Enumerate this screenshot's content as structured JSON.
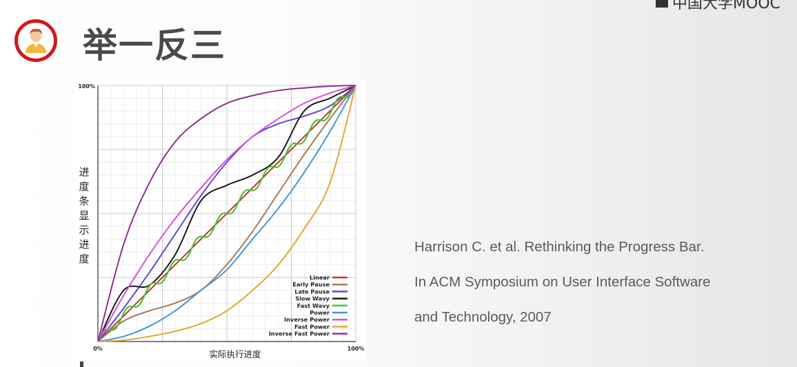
{
  "header": {
    "logo_text": "中国大学MOOC",
    "title": "举一反三"
  },
  "avatar": {
    "icon": "person-avatar-icon",
    "ring_color": "#d3171b"
  },
  "citation": {
    "line1": "Harrison C. et al. Rethinking the Progress Bar.",
    "line2": "In ACM Symposium on User Interface Software",
    "line3": "and Technology, 2007"
  },
  "chart_data": {
    "type": "line",
    "xlabel": "实际执行进度",
    "ylabel": "进度条显示进度",
    "x_ticks": [
      "0%",
      "100%"
    ],
    "y_ticks": [
      "0%",
      "100%"
    ],
    "xlim": [
      0,
      1
    ],
    "ylim": [
      0,
      1
    ],
    "grid": true,
    "legend_position": "bottom-right",
    "series": [
      {
        "name": "Linear",
        "color": "#c0392b",
        "x": [
          0,
          0.25,
          0.5,
          0.75,
          1
        ],
        "y": [
          0,
          0.25,
          0.5,
          0.75,
          1
        ]
      },
      {
        "name": "Early Pause",
        "color": "#a07b55",
        "x": [
          0,
          0.1,
          0.2,
          0.3,
          0.4,
          0.5,
          0.6,
          0.7,
          0.8,
          0.9,
          1
        ],
        "y": [
          0,
          0.08,
          0.12,
          0.15,
          0.2,
          0.3,
          0.43,
          0.58,
          0.73,
          0.87,
          1
        ]
      },
      {
        "name": "Late Pause",
        "color": "#5b49d6",
        "x": [
          0,
          0.1,
          0.2,
          0.3,
          0.4,
          0.5,
          0.6,
          0.7,
          0.8,
          0.9,
          1
        ],
        "y": [
          0,
          0.13,
          0.27,
          0.42,
          0.57,
          0.7,
          0.8,
          0.85,
          0.88,
          0.92,
          1
        ]
      },
      {
        "name": "Slow Wavy",
        "color": "#1a1a1a",
        "x": [
          0,
          0.1,
          0.2,
          0.3,
          0.4,
          0.5,
          0.6,
          0.7,
          0.8,
          0.9,
          1
        ],
        "y": [
          0,
          0.2,
          0.22,
          0.34,
          0.55,
          0.61,
          0.65,
          0.72,
          0.9,
          0.95,
          1
        ]
      },
      {
        "name": "Fast Wavy",
        "color": "#4cc23a",
        "x": [
          0,
          0.1,
          0.2,
          0.3,
          0.4,
          0.5,
          0.6,
          0.7,
          0.8,
          0.9,
          1
        ],
        "y": [
          0,
          0.1,
          0.2,
          0.3,
          0.4,
          0.5,
          0.6,
          0.7,
          0.8,
          0.9,
          1
        ]
      },
      {
        "name": "Power",
        "color": "#3f98d8",
        "x": [
          0,
          0.1,
          0.2,
          0.3,
          0.4,
          0.5,
          0.6,
          0.7,
          0.8,
          0.9,
          1
        ],
        "y": [
          0,
          0.02,
          0.06,
          0.12,
          0.2,
          0.28,
          0.4,
          0.52,
          0.66,
          0.82,
          1
        ]
      },
      {
        "name": "Inverse Power",
        "color": "#d94fd4",
        "x": [
          0,
          0.1,
          0.2,
          0.3,
          0.4,
          0.5,
          0.6,
          0.7,
          0.8,
          0.9,
          1
        ],
        "y": [
          0,
          0.18,
          0.34,
          0.48,
          0.6,
          0.71,
          0.8,
          0.87,
          0.93,
          0.97,
          1
        ]
      },
      {
        "name": "Fast Power",
        "color": "#e4a72b",
        "x": [
          0,
          0.1,
          0.2,
          0.3,
          0.4,
          0.5,
          0.6,
          0.7,
          0.8,
          0.9,
          1
        ],
        "y": [
          0,
          0.005,
          0.02,
          0.04,
          0.07,
          0.12,
          0.2,
          0.3,
          0.44,
          0.62,
          1
        ]
      },
      {
        "name": "Inverse Fast Power",
        "color": "#8e2f92",
        "x": [
          0,
          0.1,
          0.2,
          0.3,
          0.4,
          0.5,
          0.6,
          0.7,
          0.8,
          0.9,
          1
        ],
        "y": [
          0,
          0.38,
          0.62,
          0.78,
          0.87,
          0.93,
          0.96,
          0.98,
          0.99,
          0.997,
          1
        ]
      }
    ]
  }
}
